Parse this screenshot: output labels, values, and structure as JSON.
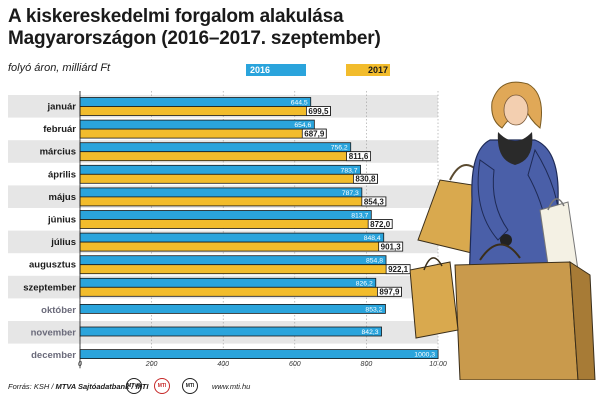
{
  "title": "A kiskereskedelmi forgalom alakulása Magyarországon (2016–2017. szeptember)",
  "unit_label": "folyó áron, milliárd Ft",
  "colors": {
    "series_2016": "#2aa4dc",
    "series_2017": "#f2bc2c",
    "band": "#e6e6e6"
  },
  "footer": {
    "source_prefix": "Forrás: KSH / ",
    "source_bold": "MTVA Sajtóadatbank / MTI",
    "logos": [
      "MTVA",
      "MTI",
      "MTI"
    ],
    "url": "www.mti.hu"
  },
  "chart_data": {
    "type": "bar",
    "orientation": "horizontal",
    "categories": [
      "január",
      "február",
      "március",
      "április",
      "május",
      "június",
      "július",
      "augusztus",
      "szeptember",
      "október",
      "november",
      "december"
    ],
    "category_labels_style": {
      "bold_through_index": 8,
      "muted_after": true
    },
    "series": [
      {
        "name": "2016",
        "color": "#2aa4dc",
        "values": [
          644.5,
          654.6,
          756.2,
          783.7,
          787.3,
          813.7,
          848.4,
          854.8,
          826.2,
          853.2,
          842.3,
          1000.3
        ]
      },
      {
        "name": "2017",
        "color": "#f2bc2c",
        "values": [
          699.5,
          687.9,
          811.6,
          830.8,
          854.3,
          872.0,
          901.3,
          922.1,
          897.9,
          null,
          null,
          null
        ]
      }
    ],
    "value_labels_2016": [
      "644,5",
      "654,6",
      "756,2",
      "783,7",
      "787,3",
      "813,7",
      "848,4",
      "854,8",
      "826,2",
      "853,2",
      "842,3",
      "1000,3"
    ],
    "value_labels_2017": [
      "699,5",
      "687,9",
      "811,6",
      "830,8",
      "854,3",
      "872,0",
      "901,3",
      "922,1",
      "897,9"
    ],
    "xlim": [
      0,
      1000
    ],
    "xticks": [
      0,
      200,
      400,
      600,
      800,
      1000
    ],
    "xtick_labels": [
      "0",
      "200",
      "400",
      "600",
      "800",
      "10 00"
    ],
    "grid": true,
    "legend_position": "top"
  }
}
